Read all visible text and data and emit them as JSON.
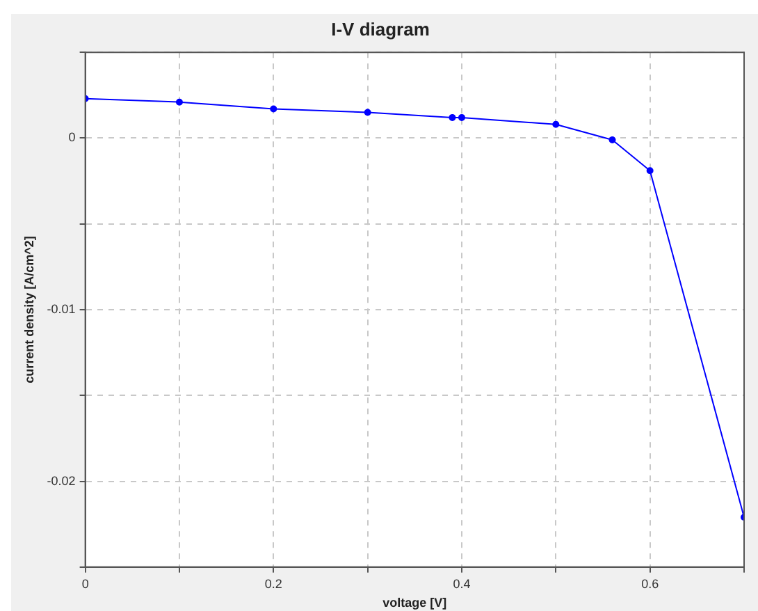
{
  "chart_data": {
    "type": "line",
    "title": "I-V diagram",
    "xlabel": "voltage [V]",
    "ylabel": "current density [A/cm^2]",
    "x": [
      0,
      0.1,
      0.2,
      0.3,
      0.39,
      0.4,
      0.5,
      0.56,
      0.6,
      0.7
    ],
    "series": [
      {
        "color": "#0000ff",
        "values": [
          0.0023,
          0.0021,
          0.0017,
          0.0015,
          0.0012,
          0.0012,
          0.0008,
          -0.0001,
          -0.0019,
          -0.0221
        ]
      }
    ],
    "xlim": [
      0,
      0.7
    ],
    "xticks": [
      0,
      {
        "value": 0.1,
        "label": null
      },
      0.2,
      {
        "value": 0.3,
        "label": null
      },
      0.4,
      {
        "value": 0.5,
        "label": null
      },
      0.6,
      {
        "value": 0.7,
        "label": null
      }
    ],
    "ylim": [
      -0.025,
      0.005
    ],
    "yticks": [
      {
        "value": -0.025,
        "label": null
      },
      -0.02,
      {
        "value": -0.015,
        "label": null
      },
      -0.01,
      {
        "value": -0.005,
        "label": null
      },
      0,
      {
        "value": 0.005,
        "label": null
      }
    ],
    "grid": true,
    "legend": false,
    "marker": "circle",
    "line_style": "solid"
  }
}
